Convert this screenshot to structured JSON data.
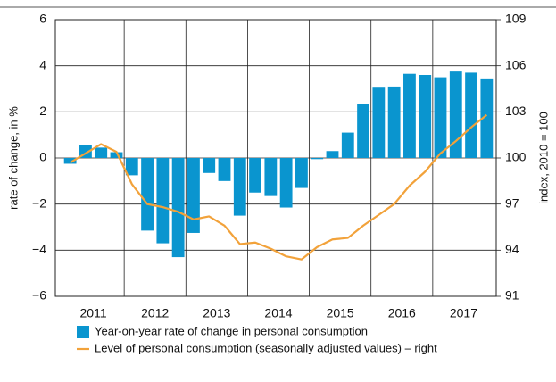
{
  "chart_data": {
    "type": "bar_line",
    "categories": [
      "2011",
      null,
      null,
      null,
      "2012",
      null,
      null,
      null,
      "2013",
      null,
      null,
      null,
      "2014",
      null,
      null,
      null,
      "2015",
      null,
      null,
      null,
      "2016",
      null,
      null,
      null,
      "2017",
      null,
      null,
      null
    ],
    "ylabel": "rate of change, in %",
    "y2label": "index, 2010 = 100",
    "ylim": [
      -6,
      6
    ],
    "yticks": [
      {
        "value": -6,
        "label": "−6"
      },
      {
        "value": -4,
        "label": "−4"
      },
      {
        "value": -2,
        "label": "−2"
      },
      0,
      2,
      4,
      6
    ],
    "y2lim": [
      91,
      109
    ],
    "y2ticks": [
      91,
      94,
      97,
      100,
      103,
      106,
      109
    ],
    "grid": true,
    "series": [
      {
        "name": "Year-on-year rate of change in personal consumption",
        "type": "bar",
        "color": "#0a95cf",
        "values": [
          -0.25,
          0.55,
          0.45,
          0.25,
          -0.75,
          -3.15,
          -3.7,
          -4.3,
          -3.25,
          -0.65,
          -1.0,
          -2.5,
          -1.5,
          -1.65,
          -2.15,
          -1.3,
          -0.05,
          0.3,
          1.1,
          2.35,
          3.05,
          3.1,
          3.65,
          3.6,
          3.5,
          3.75,
          3.7,
          3.45
        ]
      },
      {
        "name": "Level of personal consumption (seasonally adjusted values) – right",
        "type": "line",
        "axis": "y2",
        "color": "#f2a23a",
        "values": [
          99.7,
          100.3,
          100.9,
          100.4,
          98.3,
          97.0,
          96.8,
          96.5,
          96.0,
          96.2,
          95.6,
          94.4,
          94.5,
          94.1,
          93.6,
          93.4,
          94.2,
          94.7,
          94.8,
          95.6,
          96.3,
          97.0,
          98.2,
          99.1,
          100.3,
          101.1,
          102.0,
          102.8
        ]
      }
    ]
  }
}
